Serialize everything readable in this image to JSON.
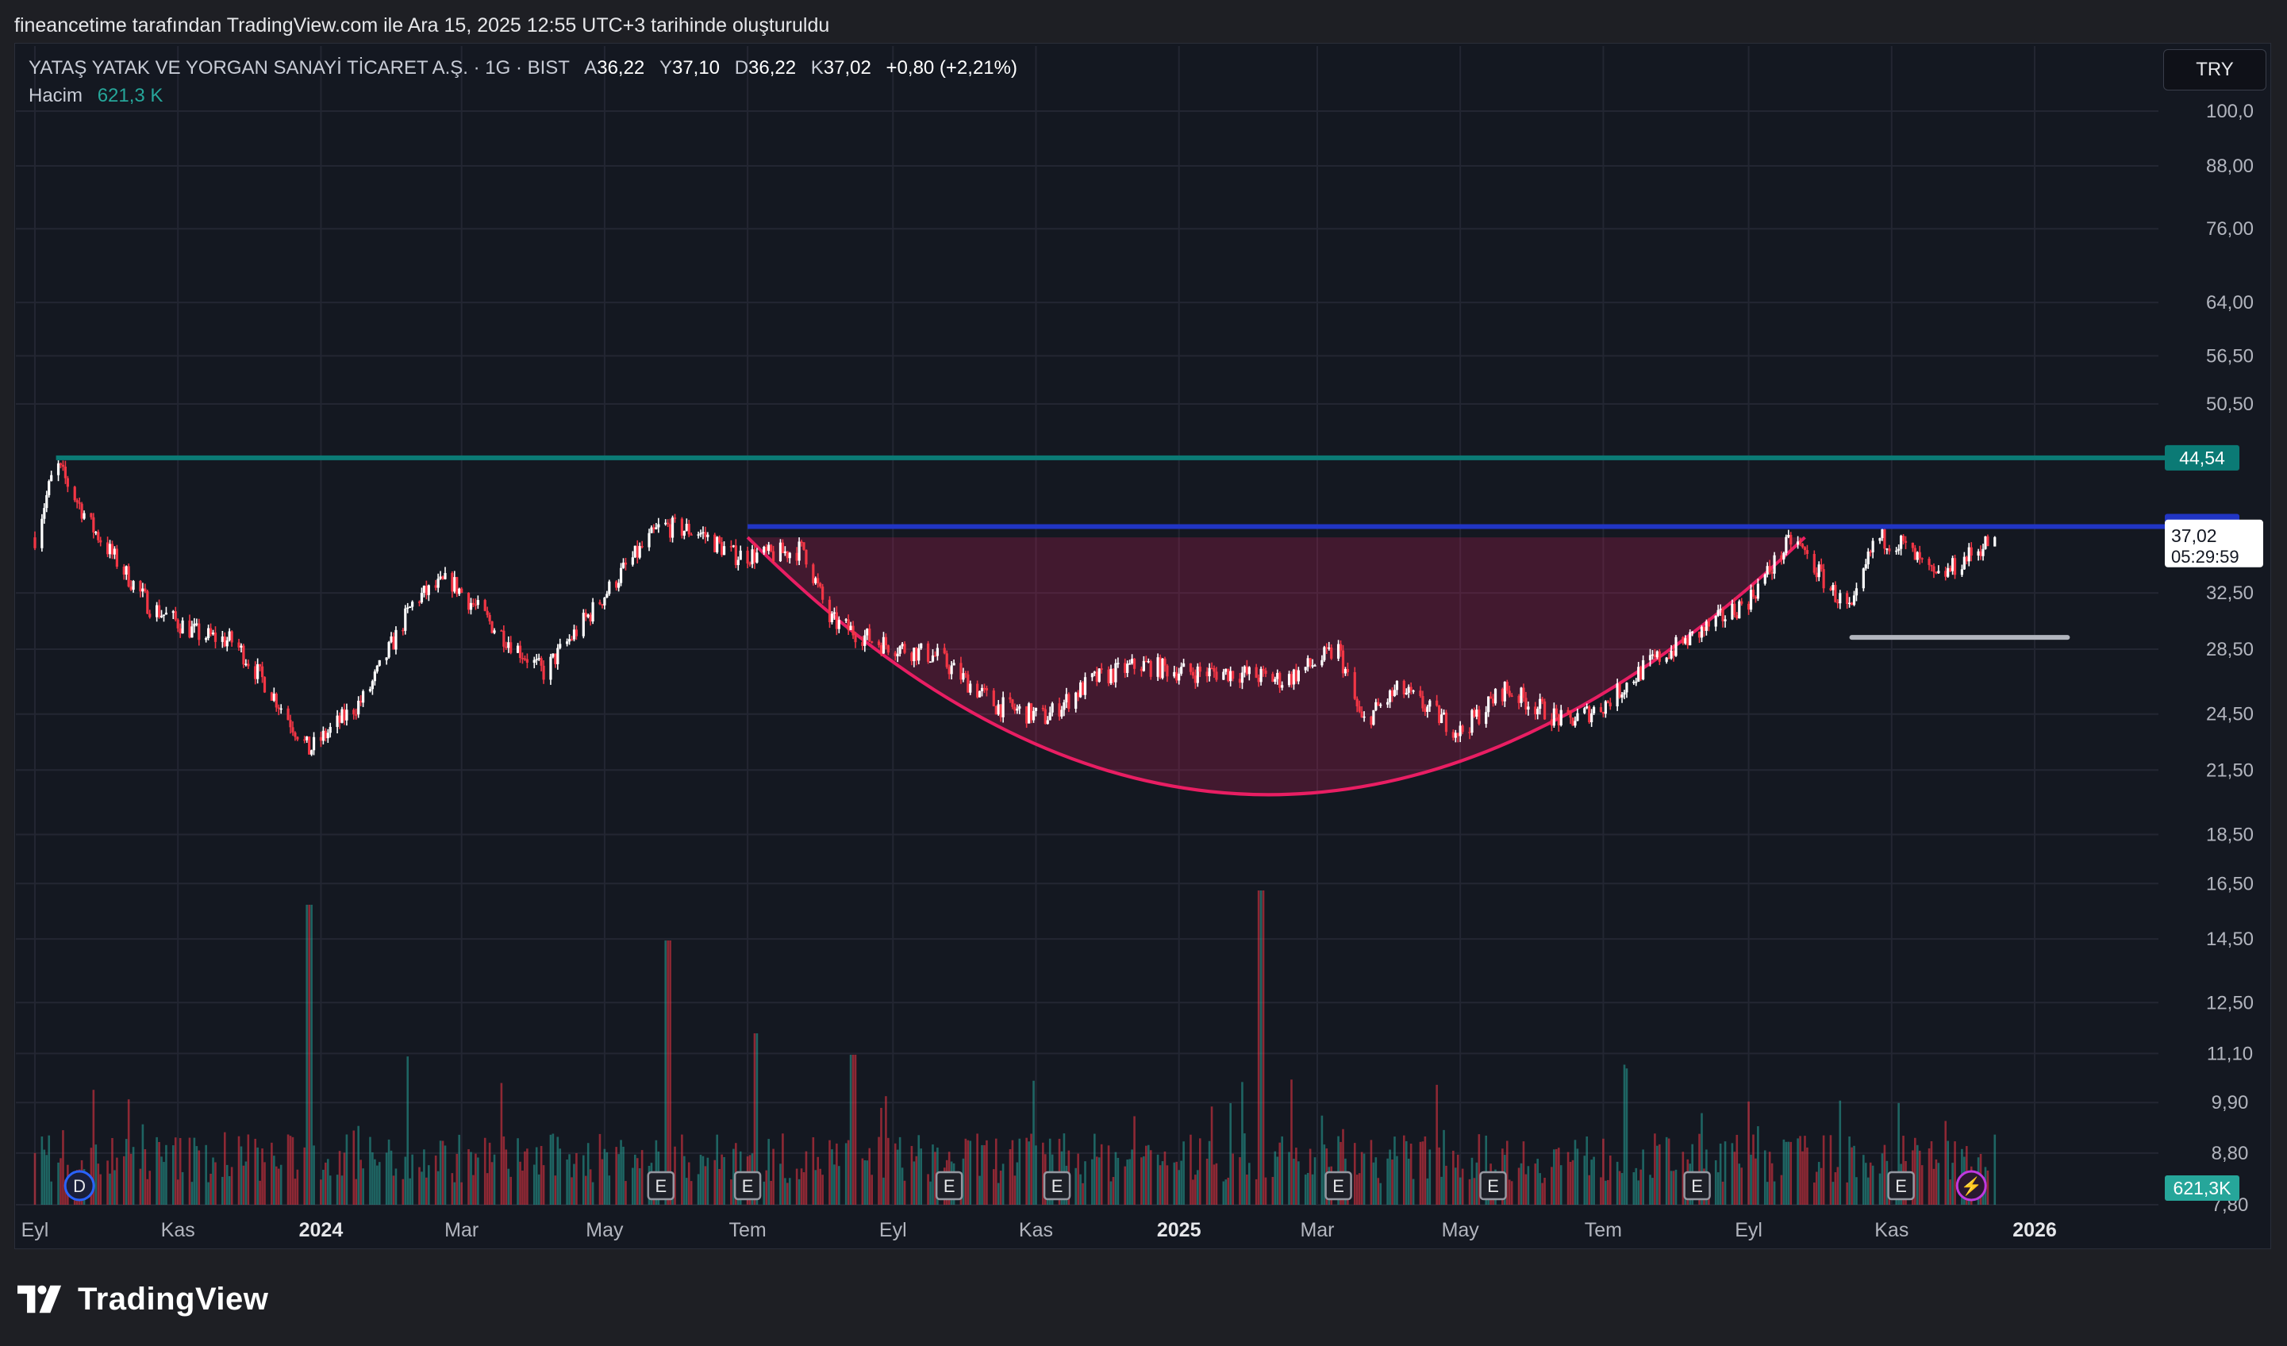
{
  "header": {
    "attribution": "fineancetime tarafından TradingView.com ile Ara 15, 2025 12:55 UTC+3 tarihinde oluşturuldu"
  },
  "legend": {
    "symbol": "YATAŞ YATAK VE YORGAN SANAYİ TİCARET A.Ş. · 1G · BIST",
    "open_label": "A",
    "open_value": "36,22",
    "high_label": "Y",
    "high_value": "37,10",
    "low_label": "D",
    "low_value": "36,22",
    "close_label": "K",
    "close_value": "37,02",
    "change": "+0,80 (+2,21%)",
    "volume_label": "Hacim",
    "volume_value": "621,3 K"
  },
  "currency": "TRY",
  "footer": {
    "brand": "TradingView"
  },
  "colors": {
    "up": "#ffffff",
    "down": "#f23645",
    "vol_up": "#26a69a",
    "vol_down": "#f23645",
    "resistance": "#0b7a75",
    "breakout_line": "#2135c4",
    "cup": "#e91e63",
    "support": "#b2b5be",
    "background": "#141821",
    "grid": "#232632"
  },
  "chart_data": {
    "type": "candlestick",
    "symbol": "YATAS",
    "interval": "1G",
    "exchange": "BIST",
    "currency": "TRY",
    "y_scale": "log",
    "ylim": [
      7.8,
      104
    ],
    "y_ticks": [
      {
        "value": 100,
        "label": "100,0"
      },
      {
        "value": 88,
        "label": "88,00"
      },
      {
        "value": 76,
        "label": "76,00"
      },
      {
        "value": 64,
        "label": "64,00"
      },
      {
        "value": 56.5,
        "label": "56,50"
      },
      {
        "value": 50.5,
        "label": "50,50"
      },
      {
        "value": 32.5,
        "label": "32,50"
      },
      {
        "value": 28.5,
        "label": "28,50"
      },
      {
        "value": 24.5,
        "label": "24,50"
      },
      {
        "value": 21.5,
        "label": "21,50"
      },
      {
        "value": 18.5,
        "label": "18,50"
      },
      {
        "value": 16.5,
        "label": "16,50"
      },
      {
        "value": 14.5,
        "label": "14,50"
      },
      {
        "value": 12.5,
        "label": "12,50"
      },
      {
        "value": 11.1,
        "label": "11,10"
      },
      {
        "value": 9.9,
        "label": "9,90"
      },
      {
        "value": 8.8,
        "label": "8,80"
      },
      {
        "value": 7.8,
        "label": "7,80"
      }
    ],
    "x_ticks": [
      {
        "date": "2023-09-01",
        "label": "Eyl",
        "bold": false
      },
      {
        "date": "2023-11-01",
        "label": "Kas",
        "bold": false
      },
      {
        "date": "2024-01-01",
        "label": "2024",
        "bold": true
      },
      {
        "date": "2024-03-01",
        "label": "Mar",
        "bold": false
      },
      {
        "date": "2024-05-01",
        "label": "May",
        "bold": false
      },
      {
        "date": "2024-07-01",
        "label": "Tem",
        "bold": false
      },
      {
        "date": "2024-09-01",
        "label": "Eyl",
        "bold": false
      },
      {
        "date": "2024-11-01",
        "label": "Kas",
        "bold": false
      },
      {
        "date": "2025-01-01",
        "label": "2025",
        "bold": true
      },
      {
        "date": "2025-03-01",
        "label": "Mar",
        "bold": false
      },
      {
        "date": "2025-05-01",
        "label": "May",
        "bold": false
      },
      {
        "date": "2025-07-01",
        "label": "Tem",
        "bold": false
      },
      {
        "date": "2025-09-01",
        "label": "Eyl",
        "bold": false
      },
      {
        "date": "2025-11-01",
        "label": "Kas",
        "bold": false
      },
      {
        "date": "2026-01-01",
        "label": "2026",
        "bold": true
      }
    ],
    "price_path": [
      {
        "date": "2023-09-01",
        "close": 37.0
      },
      {
        "date": "2023-09-10",
        "close": 44.0
      },
      {
        "date": "2023-09-25",
        "close": 38.0
      },
      {
        "date": "2023-10-20",
        "close": 31.5
      },
      {
        "date": "2023-11-10",
        "close": 29.5
      },
      {
        "date": "2023-11-25",
        "close": 29.0
      },
      {
        "date": "2023-12-10",
        "close": 26.0
      },
      {
        "date": "2023-12-27",
        "close": 22.5
      },
      {
        "date": "2024-01-20",
        "close": 25.5
      },
      {
        "date": "2024-02-10",
        "close": 32.0
      },
      {
        "date": "2024-02-25",
        "close": 33.5
      },
      {
        "date": "2024-03-15",
        "close": 30.0
      },
      {
        "date": "2024-04-05",
        "close": 27.0
      },
      {
        "date": "2024-04-25",
        "close": 31.0
      },
      {
        "date": "2024-05-10",
        "close": 34.5
      },
      {
        "date": "2024-05-25",
        "close": 38.0
      },
      {
        "date": "2024-06-10",
        "close": 37.5
      },
      {
        "date": "2024-06-25",
        "close": 35.5
      },
      {
        "date": "2024-07-10",
        "close": 35.5
      },
      {
        "date": "2024-07-25",
        "close": 36.0
      },
      {
        "date": "2024-08-05",
        "close": 30.5
      },
      {
        "date": "2024-08-25",
        "close": 29.0
      },
      {
        "date": "2024-09-20",
        "close": 28.0
      },
      {
        "date": "2024-10-15",
        "close": 25.0
      },
      {
        "date": "2024-11-05",
        "close": 24.3
      },
      {
        "date": "2024-11-25",
        "close": 26.5
      },
      {
        "date": "2024-12-15",
        "close": 27.5
      },
      {
        "date": "2025-01-05",
        "close": 27.0
      },
      {
        "date": "2025-01-25",
        "close": 27.0
      },
      {
        "date": "2025-02-15",
        "close": 26.5
      },
      {
        "date": "2025-03-10",
        "close": 28.5
      },
      {
        "date": "2025-03-20",
        "close": 24.0
      },
      {
        "date": "2025-04-05",
        "close": 26.0
      },
      {
        "date": "2025-05-01",
        "close": 23.5
      },
      {
        "date": "2025-05-20",
        "close": 26.0
      },
      {
        "date": "2025-06-15",
        "close": 24.0
      },
      {
        "date": "2025-07-01",
        "close": 25.0
      },
      {
        "date": "2025-07-20",
        "close": 27.5
      },
      {
        "date": "2025-08-10",
        "close": 29.5
      },
      {
        "date": "2025-09-01",
        "close": 32.0
      },
      {
        "date": "2025-09-20",
        "close": 37.0
      },
      {
        "date": "2025-10-05",
        "close": 33.0
      },
      {
        "date": "2025-10-15",
        "close": 31.0
      },
      {
        "date": "2025-10-25",
        "close": 37.0
      },
      {
        "date": "2025-11-05",
        "close": 36.5
      },
      {
        "date": "2025-11-20",
        "close": 33.5
      },
      {
        "date": "2025-12-15",
        "close": 37.02
      }
    ],
    "last_bar": {
      "date": "2025-12-15",
      "open": 36.22,
      "high": 37.1,
      "low": 36.22,
      "close": 37.02,
      "change": 0.8,
      "change_pct": 2.21
    },
    "volume_last": "621,3K",
    "volume_spikes": [
      {
        "date": "2023-12-27",
        "relative": 0.42
      },
      {
        "date": "2024-05-28",
        "relative": 0.37
      },
      {
        "date": "2024-07-05",
        "relative": 0.24
      },
      {
        "date": "2024-08-15",
        "relative": 0.21
      },
      {
        "date": "2025-02-05",
        "relative": 0.44
      }
    ],
    "price_labels": [
      {
        "value": 44.54,
        "label": "44,54",
        "color": "#0b7a75"
      },
      {
        "value": 37.94,
        "label": "37,94",
        "color": "#2135c4"
      },
      {
        "value": 37.02,
        "label": "37,02",
        "sub": "05:29:59",
        "color": "#ffffff"
      },
      {
        "value": 8.2,
        "label": "621,3K",
        "color": "#26a69a"
      }
    ],
    "drawings": [
      {
        "kind": "horizontal",
        "name": "resistance",
        "value": 44.54,
        "from": "2023-09-10",
        "to": "2026-02-28"
      },
      {
        "kind": "horizontal",
        "name": "breakout",
        "value": 37.94,
        "from": "2024-07-01",
        "to": "2026-02-28"
      },
      {
        "kind": "cup",
        "from": "2024-07-01",
        "to": "2025-09-25",
        "rim": 37.0,
        "bottom": 20.3,
        "bottom_date": "2025-02-05"
      },
      {
        "kind": "segment",
        "name": "support",
        "value": 29.3,
        "from": "2025-10-15",
        "to": "2026-01-15"
      }
    ],
    "events": [
      {
        "date": "2023-09-20",
        "label": "D"
      },
      {
        "date": "2024-05-25",
        "label": "E"
      },
      {
        "date": "2024-07-01",
        "label": "E"
      },
      {
        "date": "2024-09-25",
        "label": "E"
      },
      {
        "date": "2024-11-10",
        "label": "E"
      },
      {
        "date": "2025-03-10",
        "label": "E"
      },
      {
        "date": "2025-05-15",
        "label": "E"
      },
      {
        "date": "2025-08-10",
        "label": "E"
      },
      {
        "date": "2025-11-05",
        "label": "E"
      },
      {
        "date": "2025-12-05",
        "label": "⚡"
      }
    ]
  }
}
